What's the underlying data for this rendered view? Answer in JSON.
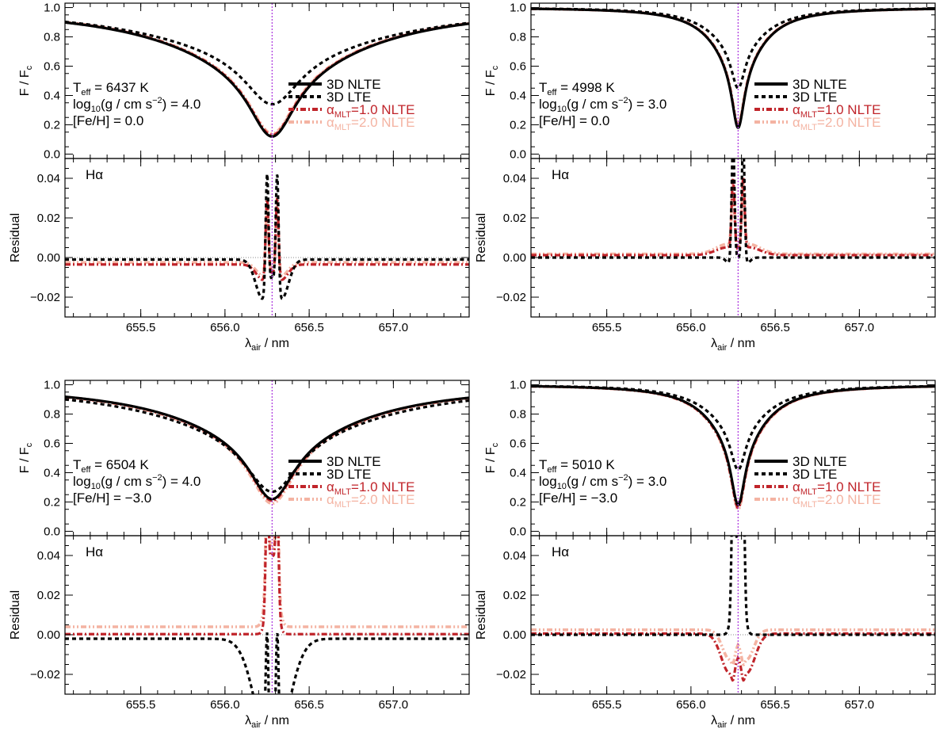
{
  "figure": {
    "xlabel_main": "λ",
    "xlabel_sub": "air",
    "xlabel_unit": " / nm",
    "ylabel_top_main": "F / F",
    "ylabel_top_sub": "c",
    "ylabel_bottom": "Residual",
    "line_label": "Hα",
    "line_center_nm": 656.28,
    "colors": {
      "nlte3d": "#000000",
      "lte3d": "#000000",
      "mlt1": "#c0242a",
      "mlt2": "#f4b3a2",
      "center_line": "#b040e0",
      "zero_line": "#888888"
    },
    "legend": [
      {
        "key": "nlte3d",
        "text": "3D NLTE"
      },
      {
        "key": "lte3d",
        "text": "3D LTE"
      },
      {
        "key": "mlt1",
        "alpha": "α",
        "sub": "MLT",
        "text": "=1.0 NLTE"
      },
      {
        "key": "mlt2",
        "alpha": "α",
        "sub": "MLT",
        "text": "=2.0 NLTE"
      }
    ]
  },
  "chart_data": [
    {
      "type": "line",
      "params": {
        "teff": "T",
        "teff_sub": "eff",
        "teff_val": " = 6437 K",
        "logg": "log",
        "logg_sub": "10",
        "logg_mid": "(g / cm s",
        "logg_sup": "−2",
        "logg_val": ") = 4.0",
        "feh": "[Fe/H] =  0.0"
      },
      "profile": {
        "hw_nlte": 0.17,
        "hw_lte": 0.2,
        "core_nlte": 0.12,
        "core_lte": 0.34,
        "core_mlt1": 0.13,
        "core_mlt2": 0.14
      },
      "top": {
        "xlim": [
          655.05,
          657.45
        ],
        "ylim": [
          -0.03,
          1.03
        ],
        "xticks": [
          655.5,
          656.0,
          656.5,
          657.0
        ],
        "yticks": [
          0.0,
          0.2,
          0.4,
          0.6,
          0.8,
          1.0
        ],
        "ytick_labels": [
          "0.0",
          "0.2",
          "0.4",
          "0.6",
          "0.8",
          "1.0"
        ]
      },
      "bottom": {
        "xlim": [
          655.05,
          657.45
        ],
        "ylim": [
          -0.03,
          0.05
        ],
        "yticks": [
          -0.02,
          0.0,
          0.02,
          0.04
        ],
        "ytick_labels": [
          "−0.02",
          "0.00",
          "0.02",
          "0.04"
        ],
        "xtick_labels": [
          "655.5",
          "656.0",
          "656.5",
          "657.0"
        ]
      },
      "residuals": {
        "lte3d": {
          "base": -0.001,
          "dip_amp": -0.02,
          "dip_offset": 0.055,
          "dip_width": 0.06,
          "spike": 0.06
        },
        "mlt1": {
          "base": -0.0035,
          "dip_amp": -0.008,
          "dip_offset": 0.05,
          "dip_width": 0.06,
          "spike": 0.04
        },
        "mlt2": {
          "base": -0.0025,
          "dip_amp": -0.007,
          "dip_offset": 0.05,
          "dip_width": 0.06,
          "spike": 0.035
        }
      }
    },
    {
      "type": "line",
      "params": {
        "teff": "T",
        "teff_sub": "eff",
        "teff_val": " = 4998 K",
        "logg": "log",
        "logg_sub": "10",
        "logg_mid": "(g / cm s",
        "logg_sup": "−2",
        "logg_val": ") = 3.0",
        "feh": "[Fe/H] =  0.0"
      },
      "profile": {
        "hw_nlte": 0.045,
        "hw_lte": 0.05,
        "core_nlte": 0.18,
        "core_lte": 0.45,
        "core_mlt1": 0.19,
        "core_mlt2": 0.2
      },
      "top": {
        "xlim": [
          655.05,
          657.45
        ],
        "ylim": [
          -0.03,
          1.03
        ],
        "xticks": [
          655.5,
          656.0,
          656.5,
          657.0
        ],
        "yticks": [
          0.0,
          0.2,
          0.4,
          0.6,
          0.8,
          1.0
        ],
        "ytick_labels": [
          "0.0",
          "0.2",
          "0.4",
          "0.6",
          "0.8",
          "1.0"
        ]
      },
      "bottom": {
        "xlim": [
          655.05,
          657.45
        ],
        "ylim": [
          -0.03,
          0.05
        ],
        "yticks": [
          -0.02,
          0.0,
          0.02,
          0.04
        ],
        "ytick_labels": [
          "−0.02",
          "0.00",
          "0.02",
          "0.04"
        ],
        "xtick_labels": [
          "655.5",
          "656.0",
          "656.5",
          "657.0"
        ]
      },
      "residuals": {
        "lte3d": {
          "base": 0.0,
          "dip_amp": -0.003,
          "dip_offset": 0.05,
          "dip_width": 0.03,
          "spike": 0.06
        },
        "mlt1": {
          "base": 0.0012,
          "dip_amp": 0.004,
          "dip_offset": 0.06,
          "dip_width": 0.1,
          "spike": 0.035
        },
        "mlt2": {
          "base": 0.0018,
          "dip_amp": 0.005,
          "dip_offset": 0.06,
          "dip_width": 0.1,
          "spike": 0.03
        }
      }
    },
    {
      "type": "line",
      "params": {
        "teff": "T",
        "teff_sub": "eff",
        "teff_val": " = 6504 K",
        "logg": "log",
        "logg_sub": "10",
        "logg_mid": "(g / cm s",
        "logg_sup": "−2",
        "logg_val": ") = 4.0",
        "feh": "[Fe/H] = −3.0"
      },
      "profile": {
        "hw_nlte": 0.16,
        "hw_lte": 0.19,
        "core_nlte": 0.22,
        "core_lte": 0.27,
        "core_mlt1": 0.21,
        "core_mlt2": 0.19
      },
      "top": {
        "xlim": [
          655.05,
          657.45
        ],
        "ylim": [
          -0.03,
          1.03
        ],
        "xticks": [
          655.5,
          656.0,
          656.5,
          657.0
        ],
        "yticks": [
          0.0,
          0.2,
          0.4,
          0.6,
          0.8,
          1.0
        ],
        "ytick_labels": [
          "0.0",
          "0.2",
          "0.4",
          "0.6",
          "0.8",
          "1.0"
        ]
      },
      "bottom": {
        "xlim": [
          655.05,
          657.45
        ],
        "ylim": [
          -0.03,
          0.05
        ],
        "yticks": [
          -0.02,
          0.0,
          0.02,
          0.04
        ],
        "ytick_labels": [
          "−0.02",
          "0.00",
          "0.02",
          "0.04"
        ],
        "xtick_labels": [
          "655.5",
          "656.0",
          "656.5",
          "657.0"
        ]
      },
      "residuals": {
        "lte3d": {
          "base": -0.002,
          "dip_amp": -0.06,
          "dip_offset": 0.0,
          "dip_width": 0.13,
          "spike": 0.06
        },
        "mlt1": {
          "base": 0.0003,
          "dip_amp": 0.04,
          "dip_offset": 0.0,
          "dip_width": 0.035,
          "spike": 0.05
        },
        "mlt2": {
          "base": 0.004,
          "dip_amp": 0.04,
          "dip_offset": 0.0,
          "dip_width": 0.04,
          "spike": 0.05
        }
      }
    },
    {
      "type": "line",
      "params": {
        "teff": "T",
        "teff_sub": "eff",
        "teff_val": " = 5010 K",
        "logg": "log",
        "logg_sub": "10",
        "logg_mid": "(g / cm s",
        "logg_sup": "−2",
        "logg_val": ") = 3.0",
        "feh": "[Fe/H] = −3.0"
      },
      "profile": {
        "hw_nlte": 0.05,
        "hw_lte": 0.055,
        "core_nlte": 0.18,
        "core_lte": 0.42,
        "core_mlt1": 0.16,
        "core_mlt2": 0.15
      },
      "top": {
        "xlim": [
          655.05,
          657.45
        ],
        "ylim": [
          -0.03,
          1.03
        ],
        "xticks": [
          655.5,
          656.0,
          656.5,
          657.0
        ],
        "yticks": [
          0.0,
          0.2,
          0.4,
          0.6,
          0.8,
          1.0
        ],
        "ytick_labels": [
          "0.0",
          "0.2",
          "0.4",
          "0.6",
          "0.8",
          "1.0"
        ]
      },
      "bottom": {
        "xlim": [
          655.05,
          657.45
        ],
        "ylim": [
          -0.03,
          0.05
        ],
        "yticks": [
          -0.02,
          0.0,
          0.02,
          0.04
        ],
        "ytick_labels": [
          "−0.02",
          "0.00",
          "0.02",
          "0.04"
        ],
        "xtick_labels": [
          "655.5",
          "656.0",
          "656.5",
          "657.0"
        ]
      },
      "residuals": {
        "lte3d": {
          "base": 0.0,
          "dip_amp": 0.05,
          "dip_offset": 0.0,
          "dip_width": 0.035,
          "spike": 0.06
        },
        "mlt1": {
          "base": 0.0006,
          "dip_amp": -0.02,
          "dip_offset": 0.05,
          "dip_width": 0.07,
          "spike": -0.005
        },
        "mlt2": {
          "base": 0.0025,
          "dip_amp": -0.015,
          "dip_offset": 0.05,
          "dip_width": 0.06,
          "spike": -0.004
        }
      }
    }
  ]
}
